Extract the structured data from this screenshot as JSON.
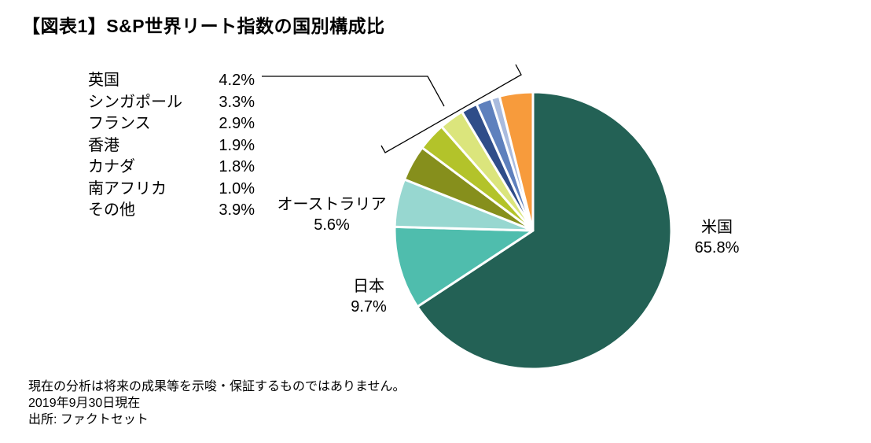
{
  "title": "【図表1】S&P世界リート指数の国別構成比",
  "chart_data": {
    "type": "pie",
    "slices": [
      {
        "name": "米国",
        "value": 65.8,
        "display": "65.8%",
        "color": "#236155"
      },
      {
        "name": "日本",
        "value": 9.7,
        "display": "9.7%",
        "color": "#4fbdad"
      },
      {
        "name": "オーストラリア",
        "value": 5.6,
        "display": "5.6%",
        "color": "#97d7d0"
      },
      {
        "name": "英国",
        "value": 4.2,
        "display": "4.2%",
        "color": "#868f1c"
      },
      {
        "name": "シンガポール",
        "value": 3.3,
        "display": "3.3%",
        "color": "#b3c32a"
      },
      {
        "name": "フランス",
        "value": 2.9,
        "display": "2.9%",
        "color": "#dbe57c"
      },
      {
        "name": "香港",
        "value": 1.9,
        "display": "1.9%",
        "color": "#2f4d89"
      },
      {
        "name": "カナダ",
        "value": 1.8,
        "display": "1.8%",
        "color": "#5e80bd"
      },
      {
        "name": "南アフリカ",
        "value": 1.0,
        "display": "1.0%",
        "color": "#a9bbde"
      },
      {
        "name": "その他",
        "value": 3.9,
        "display": "3.9%",
        "color": "#f79b3c"
      }
    ],
    "start": "12 o'clock",
    "direction": "clockwise",
    "legend": "left (bracketed small slices)"
  },
  "labels": {
    "us": {
      "name": "米国",
      "value": "65.8%"
    },
    "japan": {
      "name": "日本",
      "value": "9.7%"
    },
    "australia": {
      "name": "オーストラリア",
      "value": "5.6%"
    }
  },
  "legend_items": [
    {
      "name": "英国",
      "value": "4.2%"
    },
    {
      "name": "シンガポール",
      "value": "3.3%"
    },
    {
      "name": "フランス",
      "value": "2.9%"
    },
    {
      "name": "香港",
      "value": "1.9%"
    },
    {
      "name": "カナダ",
      "value": "1.8%"
    },
    {
      "name": "南アフリカ",
      "value": "1.0%"
    },
    {
      "name": "その他",
      "value": "3.9%"
    }
  ],
  "notes": {
    "disclaimer": "現在の分析は将来の成果等を示唆・保証するものではありません。",
    "date": "2019年9月30日現在",
    "source": "出所: ファクトセット"
  }
}
